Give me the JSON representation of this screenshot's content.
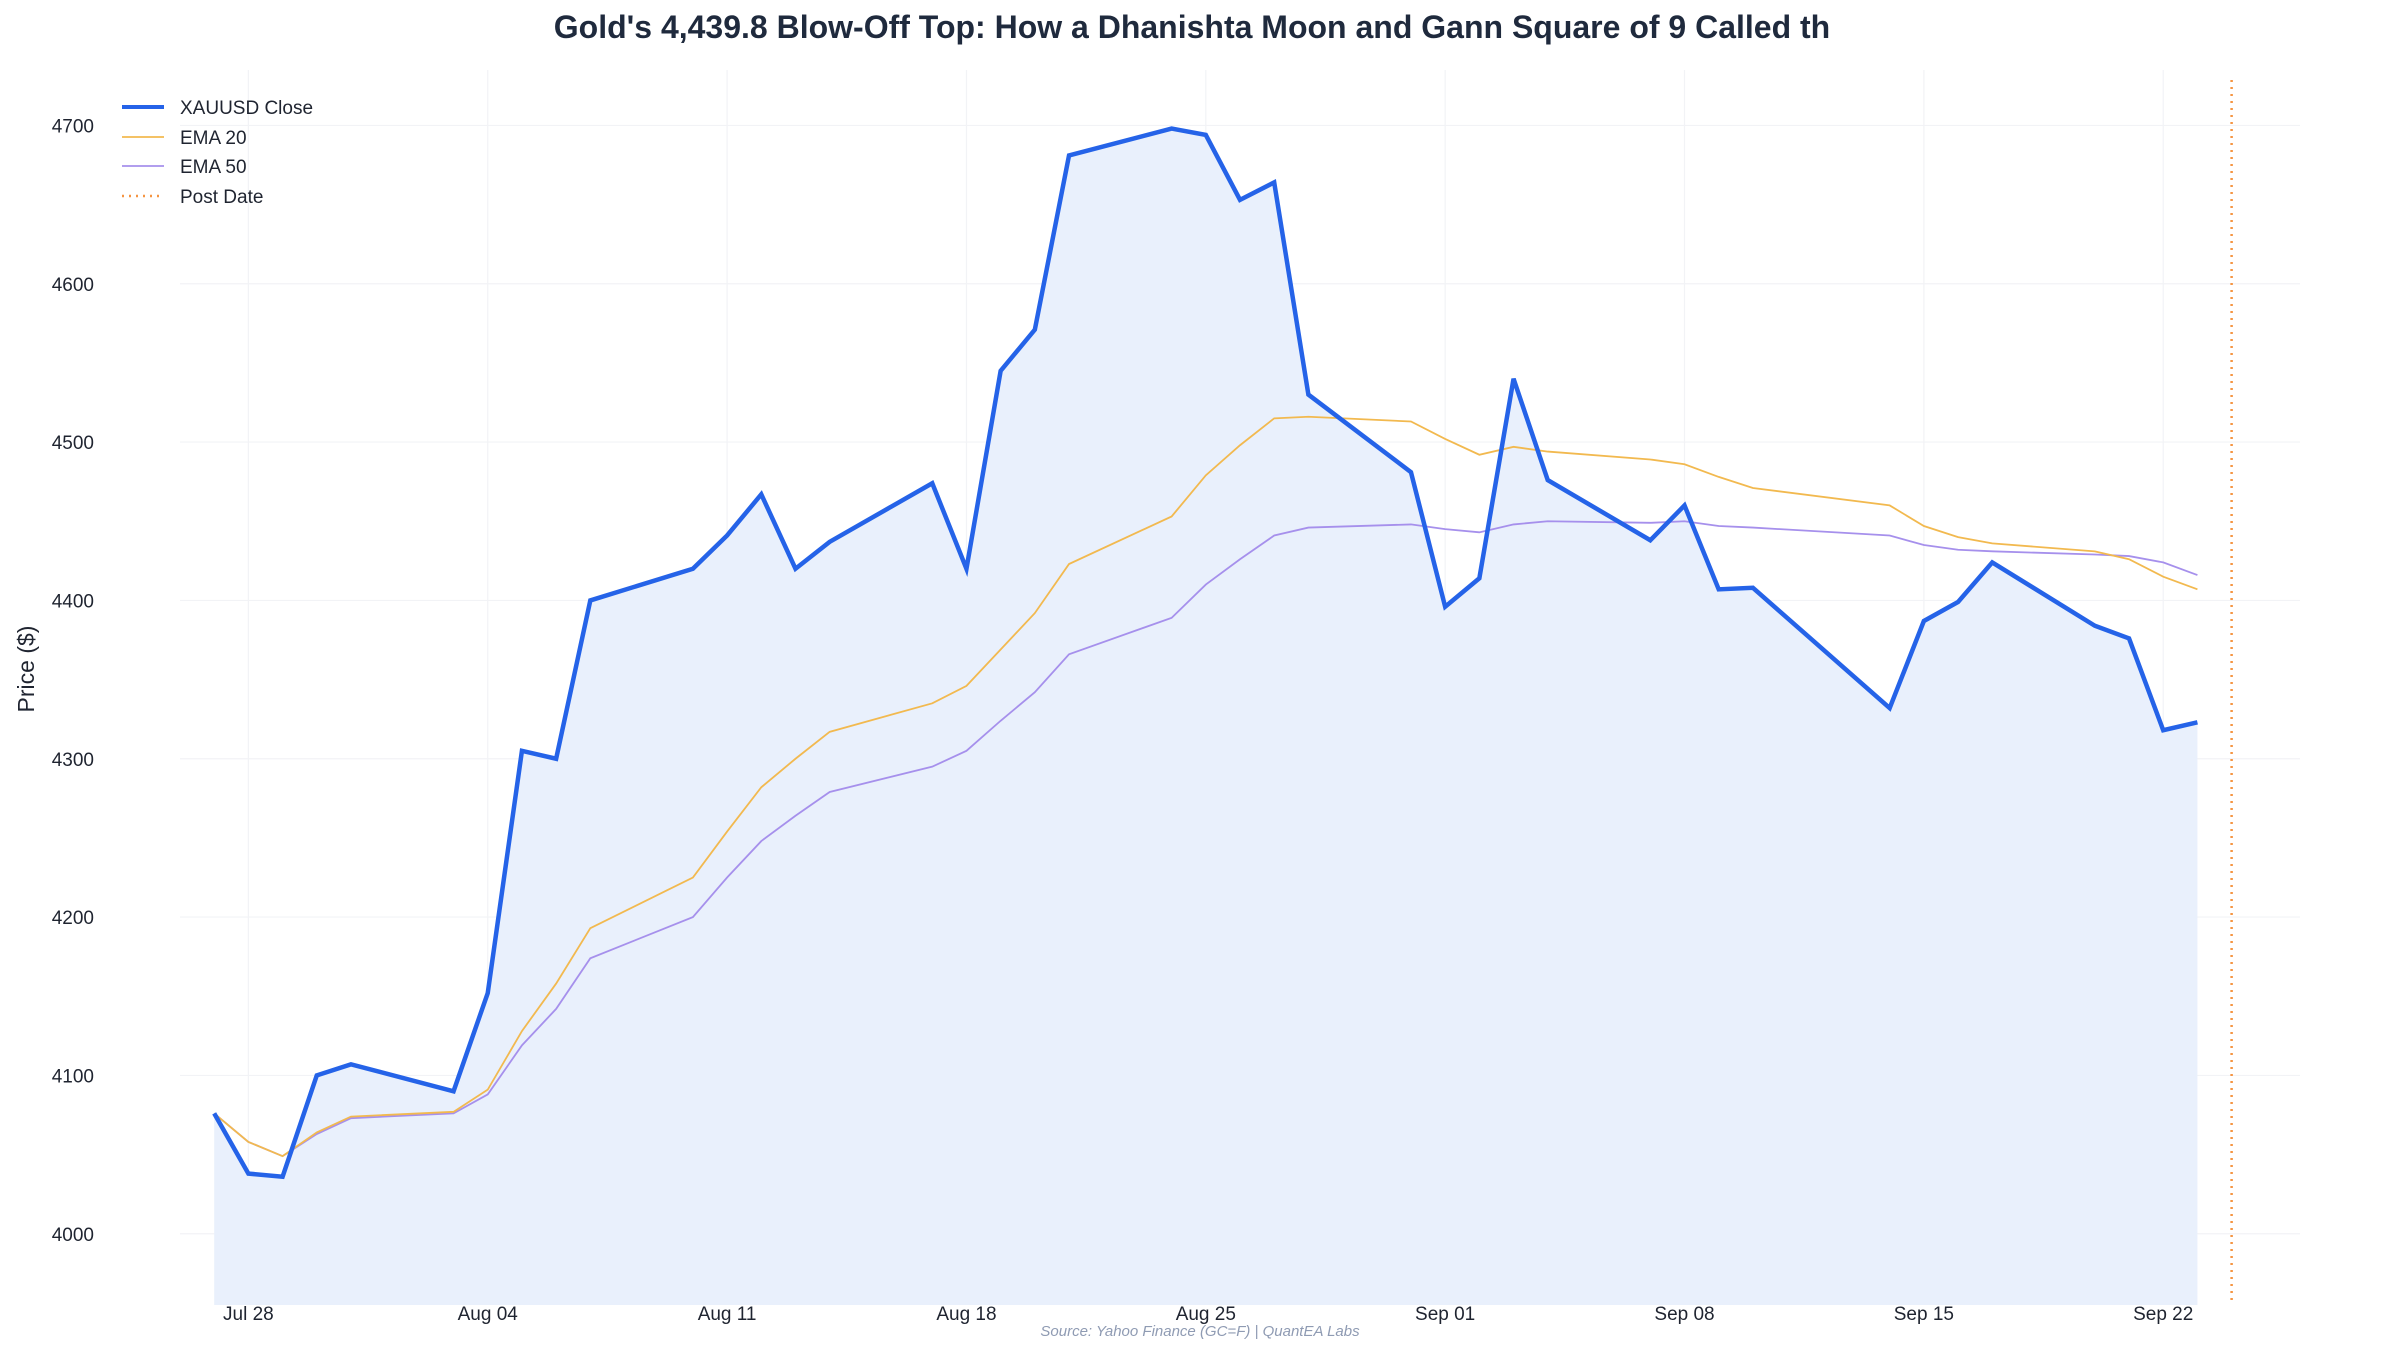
{
  "title": "Gold's 4,439.8 Blow-Off Top: How a Dhanishta Moon and Gann Square of 9 Called th",
  "source": "Source: Yahoo Finance (GC=F) | QuantEA Labs",
  "colors": {
    "close": "#2563e8",
    "area": "#e9f0fc",
    "ema20": "#f2b94f",
    "ema50": "#a690ec",
    "post": "#f59542",
    "grid": "#f2f3f6"
  },
  "legend": {
    "close": "XAUUSD Close",
    "ema20": "EMA 20",
    "ema50": "EMA 50",
    "post": "Post Date"
  },
  "chart_data": {
    "type": "line",
    "title": "Gold's 4,439.8 Blow-Off Top: How a Dhanishta Moon and Gann Square of 9 Called th",
    "xlabel": "",
    "ylabel": "Price ($)",
    "ylim": [
      3955,
      4735
    ],
    "xlim": [
      "2025-07-26",
      "2025-09-26"
    ],
    "yticks": [
      4000,
      4100,
      4200,
      4300,
      4400,
      4500,
      4600,
      4700
    ],
    "xticks": [
      {
        "date": "2025-07-28",
        "label": "Jul 28"
      },
      {
        "date": "2025-08-04",
        "label": "Aug 04"
      },
      {
        "date": "2025-08-11",
        "label": "Aug 11"
      },
      {
        "date": "2025-08-18",
        "label": "Aug 18"
      },
      {
        "date": "2025-08-25",
        "label": "Aug 25"
      },
      {
        "date": "2025-09-01",
        "label": "Sep 01"
      },
      {
        "date": "2025-09-08",
        "label": "Sep 08"
      },
      {
        "date": "2025-09-15",
        "label": "Sep 15"
      },
      {
        "date": "2025-09-22",
        "label": "Sep 22"
      }
    ],
    "grid": true,
    "legend_position": "top-left",
    "post_date": "2025-09-24",
    "dates": [
      "2025-07-27",
      "2025-07-28",
      "2025-07-29",
      "2025-07-30",
      "2025-07-31",
      "2025-08-03",
      "2025-08-04",
      "2025-08-05",
      "2025-08-06",
      "2025-08-07",
      "2025-08-10",
      "2025-08-11",
      "2025-08-12",
      "2025-08-13",
      "2025-08-14",
      "2025-08-17",
      "2025-08-18",
      "2025-08-19",
      "2025-08-20",
      "2025-08-21",
      "2025-08-24",
      "2025-08-25",
      "2025-08-26",
      "2025-08-27",
      "2025-08-28",
      "2025-08-31",
      "2025-09-01",
      "2025-09-02",
      "2025-09-03",
      "2025-09-04",
      "2025-09-07",
      "2025-09-08",
      "2025-09-09",
      "2025-09-10",
      "2025-09-14",
      "2025-09-15",
      "2025-09-16",
      "2025-09-17",
      "2025-09-20",
      "2025-09-21",
      "2025-09-22",
      "2025-09-23"
    ],
    "series": [
      {
        "name": "XAUUSD Close",
        "values": [
          4076,
          4038,
          4036,
          4100,
          4107,
          4090,
          4152,
          4305,
          4300,
          4400,
          4420,
          4441,
          4467,
          4420,
          4437,
          4474,
          4420,
          4545,
          4571,
          4681,
          4698,
          4694,
          4653,
          4664,
          4530,
          4481,
          4396,
          4414,
          4540,
          4476,
          4438,
          4460,
          4407,
          4408,
          4332,
          4387,
          4399,
          4424,
          4384,
          4376,
          4318,
          4323
        ]
      },
      {
        "name": "EMA 20",
        "values": [
          4076,
          4058,
          4049,
          4064,
          4074,
          4077,
          4091,
          4128,
          4158,
          4193,
          4225,
          4254,
          4282,
          4300,
          4317,
          4335,
          4346,
          4369,
          4392,
          4423,
          4453,
          4479,
          4498,
          4515,
          4516,
          4513,
          4502,
          4492,
          4497,
          4494,
          4489,
          4486,
          4478,
          4471,
          4460,
          4447,
          4440,
          4436,
          4431,
          4426,
          4415,
          4407
        ]
      },
      {
        "name": "EMA 50",
        "values": [
          4076,
          4058,
          4049,
          4063,
          4073,
          4076,
          4088,
          4119,
          4142,
          4174,
          4200,
          4225,
          4248,
          4264,
          4279,
          4295,
          4305,
          4324,
          4342,
          4366,
          4389,
          4410,
          4426,
          4441,
          4446,
          4448,
          4445,
          4443,
          4448,
          4450,
          4449,
          4450,
          4447,
          4446,
          4441,
          4435,
          4432,
          4431,
          4429,
          4428,
          4424,
          4416
        ]
      }
    ]
  }
}
